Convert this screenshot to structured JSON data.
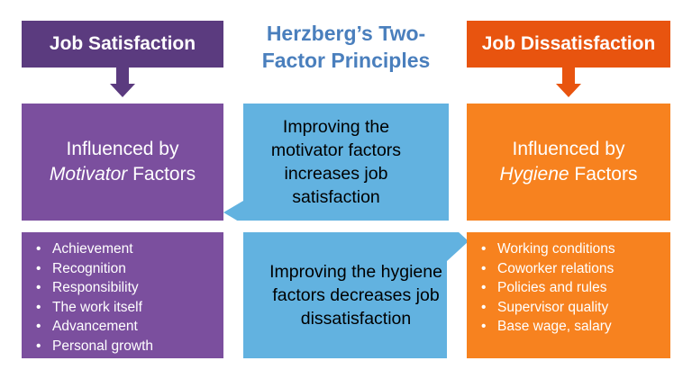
{
  "title": "Herzberg’s Two-Factor Principles",
  "satisfaction": {
    "header": "Job Satisfaction",
    "box_line1": "Influenced by",
    "box_emph": "Motivator",
    "box_rest": " Factors",
    "items": [
      "Achievement",
      "Recognition",
      "Responsibility",
      "The work itself",
      "Advancement",
      "Personal growth"
    ],
    "color_header": "#5b3b7f",
    "color_box": "#7b4f9e"
  },
  "dissatisfaction": {
    "header": "Job Dissatisfaction",
    "box_line1": "Influenced by",
    "box_emph": "Hygiene",
    "box_rest": " Factors",
    "items": [
      "Working conditions",
      "Coworker relations",
      "Policies and rules",
      "Supervisor quality",
      "Base wage, salary"
    ],
    "color_header": "#e8540f",
    "color_box": "#f7821f"
  },
  "center": {
    "motivator_text": "Improving the motivator factors increases job satisfaction",
    "hygiene_text": "Improving the hygiene factors decreases job dissatisfaction",
    "color": "#62b2e0"
  }
}
